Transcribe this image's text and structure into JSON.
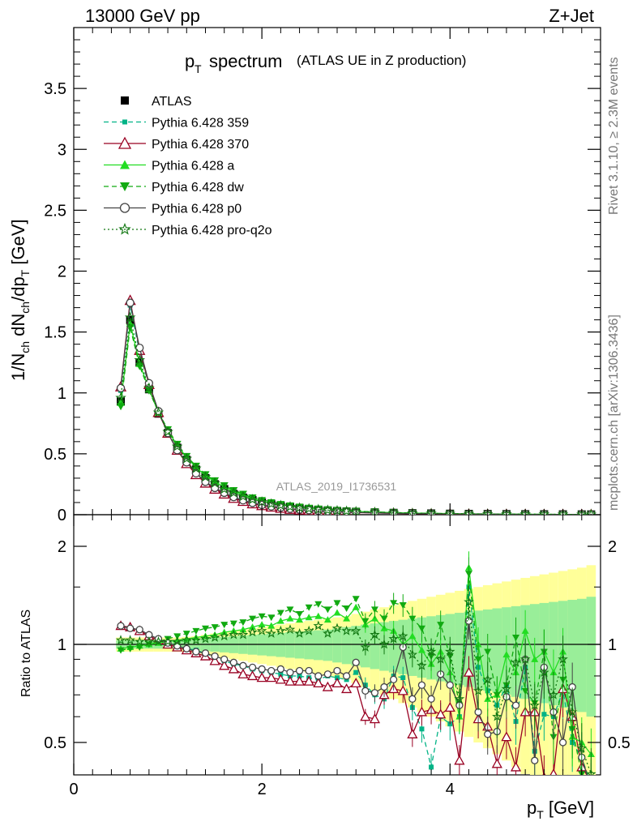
{
  "header": {
    "energy_label": "13000 GeV pp",
    "process_label": "Z+Jet",
    "title_main": "p",
    "title_sub": "T",
    "title_word": "spectrum",
    "title_paren": "(ATLAS UE in Z production)",
    "analysis_id": "ATLAS_2019_I1736531"
  },
  "side_text": {
    "rivet": "Rivet 3.1.10, ≥ 2.3M events",
    "mcplots": "mcplots.cern.ch [arXiv:1306.3436]"
  },
  "axes": {
    "ylabel_main": "1/N_ch dN_ch/dp_T [GeV]",
    "ylabel_ratio": "Ratio to ATLAS",
    "xlabel": "p_T [GeV]",
    "xticks": [
      "0",
      "2",
      "4"
    ],
    "yticks_main": [
      "0",
      "0.5",
      "1",
      "1.5",
      "2",
      "2.5",
      "3",
      "3.5"
    ],
    "yticks_ratio": [
      "0.5",
      "1",
      "2"
    ]
  },
  "legend": [
    {
      "label": "ATLAS",
      "color": "#000000",
      "marker": "square-filled",
      "line": "none"
    },
    {
      "label": "Pythia 6.428 359",
      "color": "#00b386",
      "marker": "square-small",
      "line": "dashed"
    },
    {
      "label": "Pythia 6.428 370",
      "color": "#990022",
      "marker": "triangle-open",
      "line": "solid"
    },
    {
      "label": "Pythia 6.428 a",
      "color": "#22dd22",
      "marker": "triangle-filled",
      "line": "solid"
    },
    {
      "label": "Pythia 6.428 dw",
      "color": "#11aa11",
      "marker": "triangle-down-filled",
      "line": "dashed"
    },
    {
      "label": "Pythia 6.428 p0",
      "color": "#444444",
      "marker": "circle-open",
      "line": "solid"
    },
    {
      "label": "Pythia 6.428 pro-q2o",
      "color": "#117711",
      "marker": "star-open",
      "line": "dotted"
    }
  ],
  "chart_data": [
    {
      "type": "line",
      "xlabel": "p_T [GeV]",
      "ylabel": "1/N_ch dN_ch/dp_T [GeV]",
      "xlim": [
        0,
        5.6
      ],
      "ylim": [
        0,
        4.0
      ],
      "x": [
        0.5,
        0.6,
        0.7,
        0.8,
        0.9,
        1.0,
        1.1,
        1.2,
        1.3,
        1.4,
        1.5,
        1.6,
        1.7,
        1.8,
        1.9,
        2.0,
        2.1,
        2.2,
        2.3,
        2.4,
        2.5,
        2.6,
        2.7,
        2.8,
        2.9,
        3.0,
        3.2,
        3.4,
        3.6,
        3.8,
        4.0,
        4.2,
        4.4,
        4.6,
        4.8,
        5.0,
        5.2,
        5.4,
        5.5
      ],
      "series": [
        {
          "name": "ATLAS",
          "values": [
            0.93,
            1.6,
            1.25,
            1.03,
            0.83,
            0.67,
            0.55,
            0.45,
            0.37,
            0.3,
            0.25,
            0.21,
            0.17,
            0.14,
            0.12,
            0.1,
            0.085,
            0.072,
            0.062,
            0.053,
            0.046,
            0.04,
            0.035,
            0.031,
            0.027,
            0.024,
            0.019,
            0.015,
            0.012,
            0.01,
            0.008,
            0.0065,
            0.0055,
            0.0045,
            0.0038,
            0.0032,
            0.0027,
            0.0023,
            0.002
          ]
        },
        {
          "name": "Pythia 6.428 359",
          "values": [
            1.02,
            1.72,
            1.33,
            1.06,
            0.84,
            0.67,
            0.53,
            0.43,
            0.34,
            0.27,
            0.22,
            0.18,
            0.14,
            0.115,
            0.095,
            0.078,
            0.066,
            0.056,
            0.047,
            0.041,
            0.036,
            0.031,
            0.027,
            0.024,
            0.021,
            0.019,
            0.015,
            0.012,
            0.009,
            0.007,
            0.006,
            0.005,
            0.004,
            0.0033,
            0.0028,
            0.0023,
            0.0019,
            0.0016,
            0.0014
          ]
        },
        {
          "name": "Pythia 6.428 370",
          "values": [
            1.05,
            1.76,
            1.35,
            1.07,
            0.84,
            0.67,
            0.53,
            0.42,
            0.33,
            0.26,
            0.21,
            0.17,
            0.135,
            0.11,
            0.09,
            0.075,
            0.063,
            0.053,
            0.045,
            0.039,
            0.034,
            0.03,
            0.026,
            0.023,
            0.02,
            0.018,
            0.014,
            0.011,
            0.008,
            0.0065,
            0.0055,
            0.0045,
            0.0037,
            0.003,
            0.0025,
            0.0021,
            0.0018,
            0.0015,
            0.0013
          ]
        },
        {
          "name": "Pythia 6.428 a",
          "values": [
            0.92,
            1.57,
            1.24,
            1.03,
            0.84,
            0.69,
            0.57,
            0.47,
            0.39,
            0.32,
            0.27,
            0.23,
            0.19,
            0.16,
            0.135,
            0.113,
            0.096,
            0.082,
            0.07,
            0.06,
            0.052,
            0.045,
            0.039,
            0.034,
            0.03,
            0.027,
            0.021,
            0.017,
            0.013,
            0.011,
            0.009,
            0.007,
            0.006,
            0.005,
            0.0042,
            0.0035,
            0.0029,
            0.0024,
            0.0021
          ]
        },
        {
          "name": "Pythia 6.428 dw",
          "values": [
            0.89,
            1.54,
            1.22,
            1.02,
            0.84,
            0.7,
            0.58,
            0.48,
            0.4,
            0.33,
            0.28,
            0.24,
            0.2,
            0.17,
            0.14,
            0.118,
            0.1,
            0.086,
            0.074,
            0.064,
            0.055,
            0.048,
            0.042,
            0.037,
            0.032,
            0.029,
            0.023,
            0.018,
            0.014,
            0.011,
            0.009,
            0.0075,
            0.006,
            0.005,
            0.0042,
            0.0035,
            0.0029,
            0.0024,
            0.0021
          ]
        },
        {
          "name": "Pythia 6.428 p0",
          "values": [
            1.04,
            1.74,
            1.37,
            1.08,
            0.85,
            0.67,
            0.53,
            0.43,
            0.34,
            0.27,
            0.22,
            0.18,
            0.145,
            0.118,
            0.097,
            0.08,
            0.068,
            0.058,
            0.049,
            0.042,
            0.037,
            0.032,
            0.028,
            0.025,
            0.022,
            0.019,
            0.015,
            0.012,
            0.009,
            0.007,
            0.006,
            0.005,
            0.004,
            0.0034,
            0.0028,
            0.0023,
            0.0019,
            0.0016,
            0.0014
          ]
        },
        {
          "name": "Pythia 6.428 pro-q2o",
          "values": [
            0.96,
            1.62,
            1.27,
            1.04,
            0.84,
            0.68,
            0.56,
            0.46,
            0.38,
            0.31,
            0.26,
            0.21,
            0.18,
            0.15,
            0.125,
            0.105,
            0.089,
            0.076,
            0.065,
            0.056,
            0.049,
            0.043,
            0.037,
            0.033,
            0.029,
            0.025,
            0.02,
            0.016,
            0.012,
            0.01,
            0.008,
            0.0065,
            0.0055,
            0.0045,
            0.0038,
            0.0032,
            0.0027,
            0.0022,
            0.0019
          ]
        }
      ]
    },
    {
      "type": "line",
      "ylabel": "Ratio to ATLAS",
      "xlim": [
        0,
        5.6
      ],
      "ylim": [
        0.35,
        2.3
      ],
      "x": [
        0.5,
        0.6,
        0.7,
        0.8,
        0.9,
        1.0,
        1.1,
        1.2,
        1.3,
        1.4,
        1.5,
        1.6,
        1.7,
        1.8,
        1.9,
        2.0,
        2.1,
        2.2,
        2.3,
        2.4,
        2.5,
        2.6,
        2.7,
        2.8,
        2.9,
        3.0,
        3.1,
        3.2,
        3.3,
        3.4,
        3.5,
        3.6,
        3.7,
        3.8,
        3.9,
        4.0,
        4.1,
        4.2,
        4.3,
        4.4,
        4.5,
        4.6,
        4.7,
        4.8,
        4.9,
        5.0,
        5.1,
        5.2,
        5.3,
        5.4,
        5.5
      ],
      "band_stat": [
        0.03,
        0.03,
        0.03,
        0.03,
        0.03,
        0.03,
        0.03,
        0.035,
        0.04,
        0.045,
        0.05,
        0.055,
        0.06,
        0.065,
        0.07,
        0.075,
        0.08,
        0.085,
        0.09,
        0.095,
        0.1,
        0.105,
        0.11,
        0.12,
        0.13,
        0.14,
        0.15,
        0.16,
        0.17,
        0.18,
        0.19,
        0.2,
        0.21,
        0.22,
        0.23,
        0.24,
        0.25,
        0.26,
        0.27,
        0.28,
        0.29,
        0.3,
        0.31,
        0.32,
        0.33,
        0.34,
        0.35,
        0.36,
        0.37,
        0.38,
        0.4
      ],
      "band_total": [
        0.05,
        0.05,
        0.05,
        0.05,
        0.05,
        0.05,
        0.05,
        0.055,
        0.06,
        0.07,
        0.08,
        0.09,
        0.1,
        0.11,
        0.12,
        0.13,
        0.14,
        0.15,
        0.16,
        0.17,
        0.18,
        0.19,
        0.2,
        0.21,
        0.22,
        0.24,
        0.26,
        0.28,
        0.3,
        0.32,
        0.34,
        0.36,
        0.38,
        0.4,
        0.42,
        0.44,
        0.46,
        0.48,
        0.5,
        0.52,
        0.54,
        0.56,
        0.58,
        0.6,
        0.62,
        0.64,
        0.66,
        0.68,
        0.7,
        0.72,
        0.75
      ],
      "series": [
        {
          "name": "Pythia 6.428 359",
          "values": [
            1.13,
            1.12,
            1.1,
            1.06,
            1.03,
            1.01,
            0.99,
            0.97,
            0.96,
            0.94,
            0.91,
            0.89,
            0.87,
            0.86,
            0.84,
            0.83,
            0.82,
            0.81,
            0.8,
            0.8,
            0.79,
            0.78,
            0.8,
            0.79,
            0.78,
            0.82,
            0.75,
            0.7,
            0.68,
            0.8,
            0.79,
            0.64,
            0.55,
            0.42,
            0.6,
            0.57,
            0.6,
            1.5,
            0.85,
            0.72,
            0.65,
            0.75,
            0.58,
            0.85,
            0.47,
            0.61,
            0.6,
            0.72,
            0.5,
            0.45,
            0.37
          ]
        },
        {
          "name": "Pythia 6.428 370",
          "values": [
            1.14,
            1.13,
            1.1,
            1.06,
            1.03,
            1.0,
            0.98,
            0.96,
            0.94,
            0.92,
            0.89,
            0.86,
            0.84,
            0.81,
            0.8,
            0.79,
            0.79,
            0.78,
            0.77,
            0.77,
            0.77,
            0.76,
            0.74,
            0.76,
            0.73,
            0.76,
            0.6,
            0.59,
            0.7,
            0.73,
            0.72,
            0.53,
            0.62,
            0.63,
            0.61,
            0.64,
            0.44,
            0.82,
            0.59,
            0.56,
            0.43,
            0.52,
            0.42,
            0.62,
            0.62,
            0.39,
            0.4,
            0.73,
            0.6,
            0.42,
            0.38
          ]
        },
        {
          "name": "Pythia 6.428 a",
          "values": [
            0.97,
            0.98,
            0.99,
            1.0,
            1.01,
            1.02,
            1.03,
            1.04,
            1.05,
            1.06,
            1.07,
            1.09,
            1.1,
            1.11,
            1.13,
            1.15,
            1.14,
            1.18,
            1.2,
            1.19,
            1.21,
            1.22,
            1.19,
            1.25,
            1.2,
            1.3,
            1.15,
            1.2,
            1.12,
            1.1,
            1.0,
            1.06,
            0.96,
            0.87,
            0.95,
            0.82,
            0.6,
            1.72,
            1.0,
            0.68,
            0.7,
            0.93,
            0.82,
            1.1,
            0.9,
            0.95,
            0.82,
            0.95,
            0.52,
            0.5,
            0.46
          ]
        },
        {
          "name": "Pythia 6.428 dw",
          "values": [
            0.96,
            0.97,
            0.98,
            1.0,
            1.02,
            1.04,
            1.06,
            1.08,
            1.1,
            1.12,
            1.13,
            1.15,
            1.16,
            1.17,
            1.2,
            1.22,
            1.21,
            1.25,
            1.28,
            1.24,
            1.3,
            1.33,
            1.28,
            1.34,
            1.29,
            1.38,
            1.18,
            1.28,
            1.2,
            1.34,
            1.32,
            1.2,
            1.12,
            0.92,
            1.15,
            0.92,
            0.65,
            1.65,
            0.9,
            0.95,
            0.7,
            0.75,
            1.05,
            0.72,
            0.66,
            0.95,
            0.52,
            0.78,
            0.55,
            0.4,
            0.37
          ]
        },
        {
          "name": "Pythia 6.428 p0",
          "values": [
            1.14,
            1.12,
            1.11,
            1.07,
            1.04,
            1.01,
            0.99,
            0.97,
            0.95,
            0.94,
            0.92,
            0.9,
            0.88,
            0.86,
            0.85,
            0.84,
            0.83,
            0.84,
            0.82,
            0.83,
            0.83,
            0.8,
            0.81,
            0.83,
            0.8,
            0.88,
            0.72,
            0.71,
            0.74,
            0.78,
            0.98,
            0.68,
            0.75,
            0.68,
            0.81,
            0.75,
            0.65,
            1.18,
            0.62,
            0.53,
            0.54,
            0.69,
            0.65,
            0.9,
            0.44,
            0.85,
            0.62,
            0.5,
            0.74,
            0.45,
            0.36
          ]
        },
        {
          "name": "Pythia 6.428 pro-q2o",
          "values": [
            1.03,
            1.03,
            1.02,
            1.02,
            1.02,
            1.02,
            1.02,
            1.03,
            1.03,
            1.04,
            1.05,
            1.06,
            1.07,
            1.07,
            1.09,
            1.1,
            1.08,
            1.1,
            1.11,
            1.08,
            1.1,
            1.14,
            1.08,
            1.12,
            1.1,
            1.1,
            0.98,
            1.07,
            1.0,
            1.04,
            1.06,
            0.93,
            0.86,
            0.95,
            0.9,
            0.95,
            0.68,
            1.35,
            0.72,
            0.78,
            0.6,
            0.73,
            0.88,
            0.9,
            0.65,
            0.82,
            0.7,
            0.9,
            0.62,
            0.48,
            0.4
          ]
        }
      ]
    }
  ]
}
